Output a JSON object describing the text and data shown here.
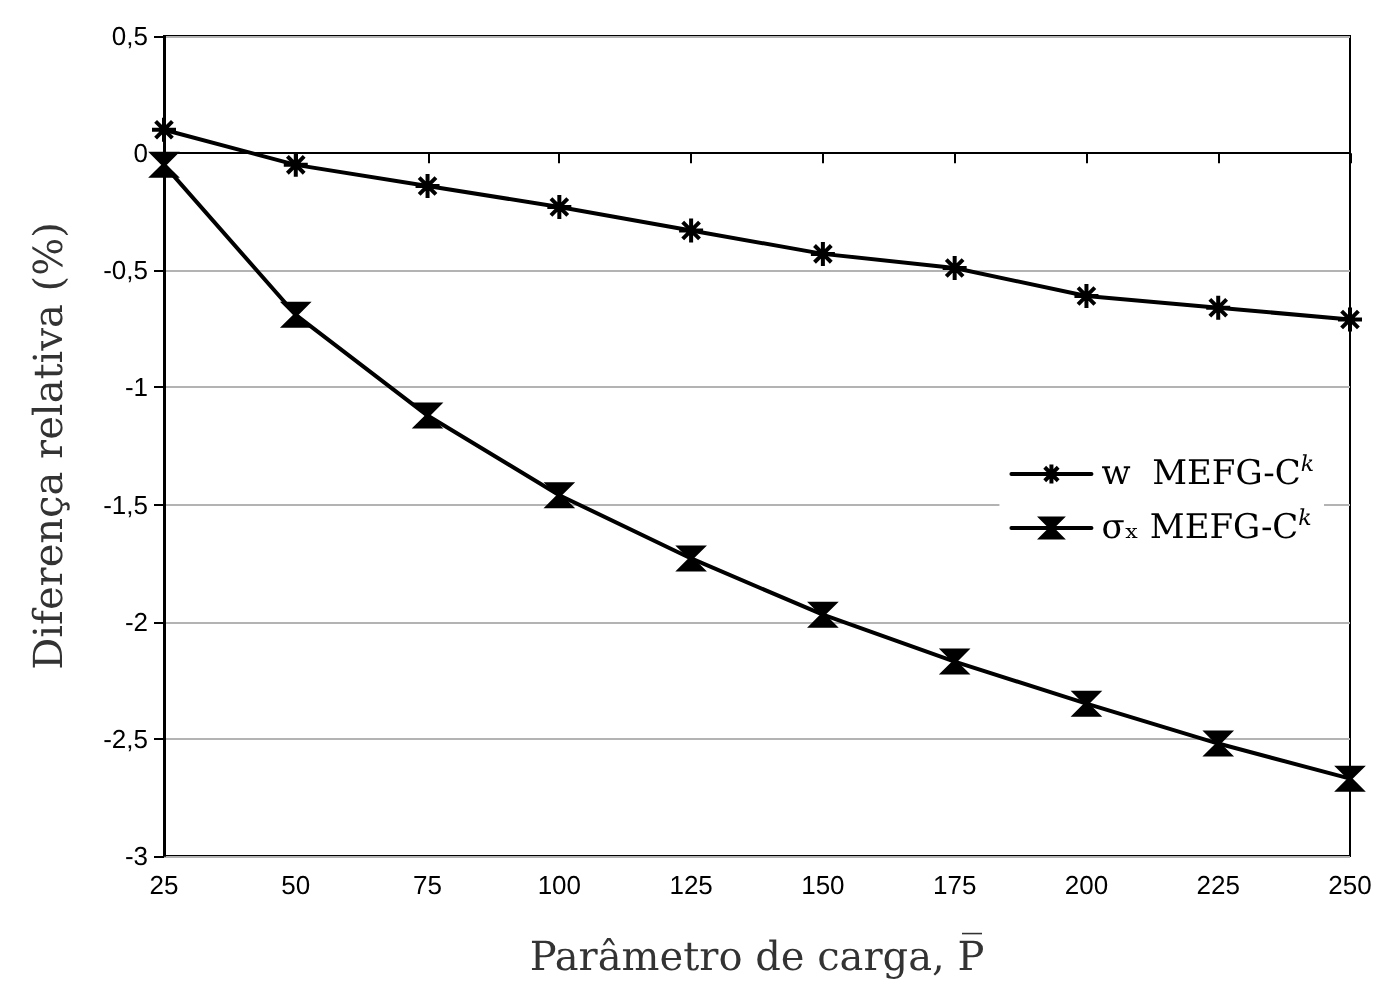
{
  "chart_data": {
    "type": "line",
    "xlabel": "Parâmetro de carga, P̅",
    "ylabel": "Diferença relativa (%)",
    "x": [
      25,
      50,
      75,
      100,
      125,
      150,
      175,
      200,
      225,
      250
    ],
    "series": [
      {
        "name": "w  MEFG-C$^{k}$",
        "color": "#000000",
        "marker": "cross",
        "values": [
          0.1,
          -0.05,
          -0.14,
          -0.23,
          -0.33,
          -0.43,
          -0.49,
          -0.61,
          -0.66,
          -0.71
        ]
      },
      {
        "name": "σₓ MEFG-C$^{k}$",
        "color": "#000000",
        "marker": "triangle",
        "values": [
          -0.05,
          -0.69,
          -1.12,
          -1.46,
          -1.73,
          -1.97,
          -2.17,
          -2.35,
          -2.52,
          -2.67
        ]
      }
    ],
    "xlim": [
      25,
      250
    ],
    "xticks": [
      25,
      50,
      75,
      100,
      125,
      150,
      175,
      200,
      225,
      250
    ],
    "ylim": [
      -3,
      0.5
    ],
    "yticks": [
      {
        "value": -3,
        "label": "-3"
      },
      {
        "value": -2.5,
        "label": "-2,5"
      },
      {
        "value": -2,
        "label": "-2"
      },
      {
        "value": -1.5,
        "label": "-1,5"
      },
      {
        "value": -1,
        "label": "-1"
      },
      {
        "value": -0.5,
        "label": "-0,5"
      },
      {
        "value": 0,
        "label": "0"
      },
      {
        "value": 0.5,
        "label": "0,5"
      }
    ],
    "grid": "y",
    "legend": "right",
    "line_style": "solid"
  }
}
